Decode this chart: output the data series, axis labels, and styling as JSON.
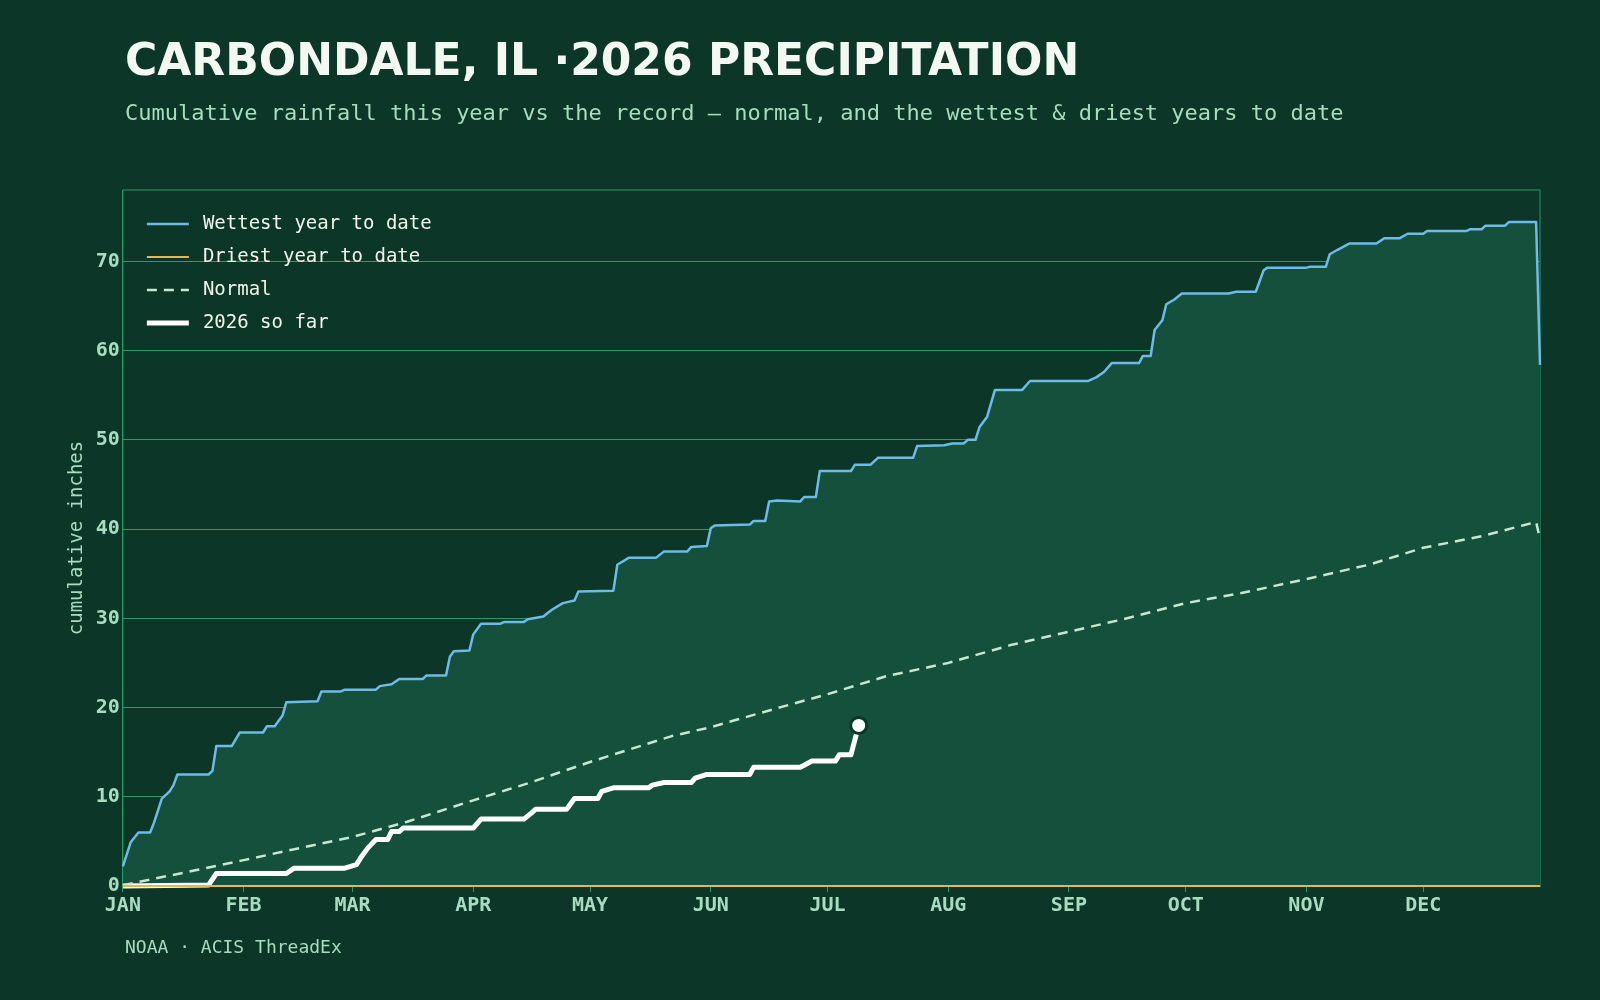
{
  "chart_data": {
    "type": "line",
    "title": "CARBONDALE, IL ·2026 PRECIPITATION",
    "subtitle": "Cumulative rainfall this year vs the record — normal, and the wettest & driest years to date",
    "ylabel": "cumulative inches",
    "annotations": [
      "NOAA · ACIS ThreadEx"
    ],
    "xlim": [
      "--01-01",
      "--12-31"
    ],
    "ylim": [
      0,
      78
    ],
    "xticks": [
      {
        "value": "--01-01",
        "label": "JAN"
      },
      {
        "value": "--02-01",
        "label": "FEB"
      },
      {
        "value": "--03-01",
        "label": "MAR"
      },
      {
        "value": "--04-01",
        "label": "APR"
      },
      {
        "value": "--05-01",
        "label": "MAY"
      },
      {
        "value": "--06-01",
        "label": "JUN"
      },
      {
        "value": "--07-01",
        "label": "JUL"
      },
      {
        "value": "--08-01",
        "label": "AUG"
      },
      {
        "value": "--09-01",
        "label": "SEP"
      },
      {
        "value": "--10-01",
        "label": "OCT"
      },
      {
        "value": "--11-01",
        "label": "NOV"
      },
      {
        "value": "--12-01",
        "label": "DEC"
      }
    ],
    "yticks": [
      0,
      10,
      20,
      30,
      40,
      50,
      60,
      70
    ],
    "grid": "y",
    "legend": "top left",
    "marker": "none",
    "line_style": "solid",
    "series": [
      {
        "name": "Wettest year to date",
        "type": "area",
        "color": "#6ebbe8",
        "x": [
          "--01-01",
          "--01-03",
          "--01-05",
          "--01-08",
          "--01-09",
          "--01-11",
          "--01-13",
          "--01-14",
          "--01-15",
          "--01-23",
          "--01-24",
          "--01-25",
          "--01-29",
          "--01-31",
          "--02-06",
          "--02-07",
          "--02-09",
          "--02-11",
          "--02-12",
          "--02-20",
          "--02-21",
          "--02-26",
          "--02-27",
          "--03-07",
          "--03-08",
          "--03-11",
          "--03-13",
          "--03-19",
          "--03-20",
          "--03-25",
          "--03-26",
          "--03-27",
          "--03-31",
          "--04-01",
          "--04-03",
          "--04-08",
          "--04-09",
          "--04-14",
          "--04-15",
          "--04-19",
          "--04-21",
          "--04-24",
          "--04-27",
          "--04-28",
          "--05-07",
          "--05-08",
          "--05-11",
          "--05-18",
          "--05-20",
          "--05-26",
          "--05-27",
          "--05-31",
          "--06-01",
          "--06-02",
          "--06-11",
          "--06-12",
          "--06-15",
          "--06-16",
          "--06-18",
          "--06-24",
          "--06-25",
          "--06-28",
          "--06-29",
          "--07-01",
          "--07-07",
          "--07-08",
          "--07-12",
          "--07-14",
          "--07-23",
          "--07-24",
          "--07-31",
          "--08-02",
          "--08-05",
          "--08-06",
          "--08-08",
          "--08-09",
          "--08-11",
          "--08-13",
          "--08-20",
          "--08-22",
          "--09-06",
          "--09-08",
          "--09-10",
          "--09-12",
          "--09-19",
          "--09-20",
          "--09-22",
          "--09-23",
          "--09-25",
          "--09-26",
          "--09-28",
          "--09-30",
          "--10-12",
          "--10-14",
          "--10-19",
          "--10-21",
          "--10-22",
          "--11-01",
          "--11-02",
          "--11-06",
          "--11-07",
          "--11-09",
          "--11-12",
          "--11-19",
          "--11-21",
          "--11-25",
          "--11-27",
          "--12-01",
          "--12-02",
          "--12-12",
          "--12-13",
          "--12-16",
          "--12-17",
          "--12-22",
          "--12-23",
          "--12-30",
          "--12-31"
        ],
        "values": [
          2.2,
          4.9,
          6.0,
          6.0,
          7.1,
          9.8,
          10.6,
          11.3,
          12.5,
          12.5,
          12.9,
          15.7,
          15.7,
          17.2,
          17.2,
          17.9,
          17.9,
          19.1,
          20.6,
          20.7,
          21.8,
          21.8,
          22.0,
          22.0,
          22.4,
          22.6,
          23.2,
          23.2,
          23.6,
          23.6,
          25.7,
          26.3,
          26.4,
          28.2,
          29.4,
          29.4,
          29.6,
          29.6,
          29.9,
          30.2,
          30.9,
          31.7,
          32.0,
          33.0,
          33.1,
          36.0,
          36.8,
          36.8,
          37.5,
          37.5,
          38.0,
          38.1,
          40.1,
          40.4,
          40.5,
          40.9,
          40.9,
          43.1,
          43.2,
          43.1,
          43.6,
          43.6,
          46.5,
          46.5,
          46.5,
          47.2,
          47.2,
          48.0,
          48.0,
          49.3,
          49.4,
          49.6,
          49.6,
          50.0,
          50.0,
          51.4,
          52.6,
          55.6,
          55.6,
          56.6,
          56.6,
          57.0,
          57.6,
          58.6,
          58.6,
          59.4,
          59.4,
          62.3,
          63.4,
          65.2,
          65.7,
          66.4,
          66.4,
          66.6,
          66.6,
          69.0,
          69.3,
          69.3,
          69.4,
          69.4,
          70.8,
          71.3,
          72.0,
          72.0,
          72.6,
          72.6,
          73.1,
          73.1,
          73.4,
          73.4,
          73.6,
          73.6,
          74.0,
          74.0,
          74.4,
          74.4,
          58.4
        ]
      },
      {
        "name": "Driest year to date",
        "color": "#e8b64a",
        "x": [
          "--01-01",
          "--12-31"
        ],
        "values": [
          0,
          0
        ]
      },
      {
        "name": "Normal",
        "color": "#c4e8d2",
        "line_style": "dashed",
        "x": [
          "--01-01",
          "--01-19",
          "--02-01",
          "--02-16",
          "--03-01",
          "--03-15",
          "--04-01",
          "--04-15",
          "--05-01",
          "--05-22",
          "--06-01",
          "--06-17",
          "--07-01",
          "--07-16",
          "--08-01",
          "--08-17",
          "--09-01",
          "--09-15",
          "--10-01",
          "--10-15",
          "--11-01",
          "--11-17",
          "--12-01",
          "--12-16",
          "--12-30",
          "--12-31"
        ],
        "values": [
          0.1,
          1.7,
          2.9,
          4.3,
          5.5,
          7.2,
          9.6,
          11.5,
          13.9,
          16.8,
          17.8,
          19.8,
          21.5,
          23.5,
          25.0,
          27.0,
          28.5,
          29.9,
          31.7,
          32.8,
          34.4,
          36.0,
          37.9,
          39.2,
          40.8,
          38.9
        ]
      },
      {
        "name": "2026 so far",
        "color": "#ffffff",
        "x": [
          "--01-01",
          "--01-23",
          "--01-25",
          "--02-12",
          "--02-14",
          "--02-27",
          "--03-02",
          "--03-03",
          "--03-05",
          "--03-07",
          "--03-10",
          "--03-11",
          "--03-13",
          "--03-14",
          "--04-01",
          "--04-03",
          "--04-14",
          "--04-16",
          "--04-17",
          "--04-25",
          "--04-27",
          "--05-03",
          "--05-04",
          "--05-07",
          "--05-16",
          "--05-17",
          "--05-20",
          "--05-27",
          "--05-28",
          "--05-31",
          "--06-11",
          "--06-12",
          "--06-24",
          "--06-27",
          "--07-03",
          "--07-04",
          "--07-07",
          "--07-09"
        ],
        "values": [
          0,
          0.1,
          1.4,
          1.4,
          2.0,
          2.0,
          2.4,
          3.1,
          4.3,
          5.2,
          5.2,
          6.1,
          6.1,
          6.5,
          6.5,
          7.5,
          7.5,
          8.2,
          8.6,
          8.6,
          9.8,
          9.8,
          10.6,
          11.0,
          11.0,
          11.3,
          11.6,
          11.6,
          12.1,
          12.5,
          12.5,
          13.3,
          13.3,
          14.0,
          14.0,
          14.7,
          14.7,
          18.0
        ]
      }
    ]
  }
}
